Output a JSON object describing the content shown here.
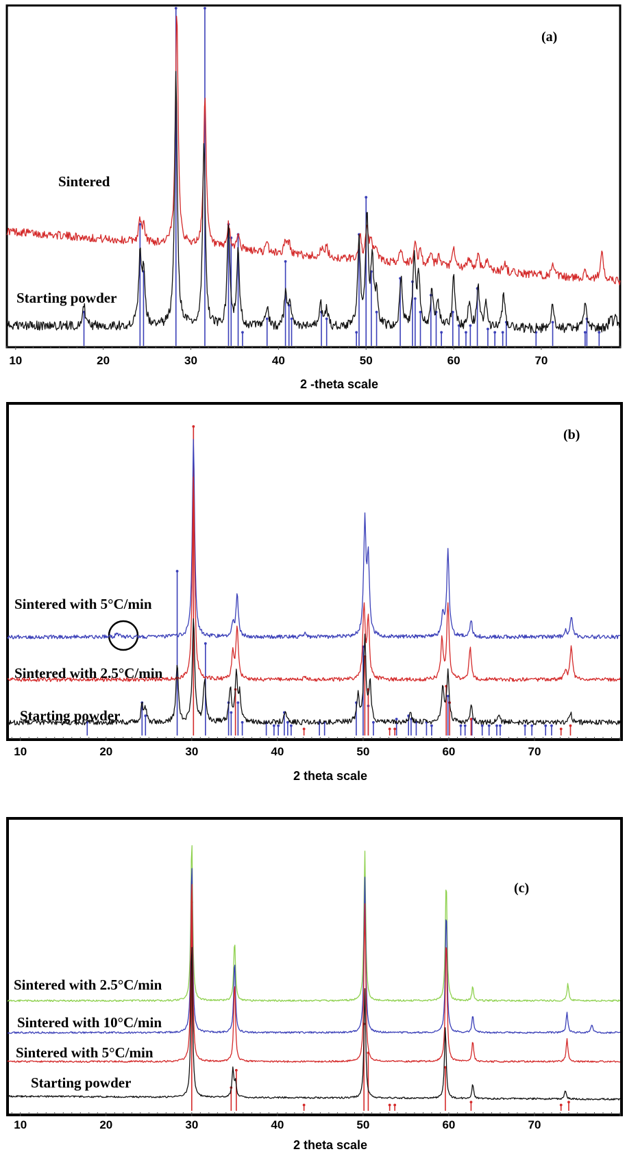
{
  "chart_data": [
    {
      "type": "line",
      "panel_label": "(a)",
      "xlabel": "2 -theta scale",
      "ylabel": "",
      "xlim": [
        9,
        79
      ],
      "x_ticks": [
        10,
        20,
        30,
        40,
        50,
        60,
        70
      ],
      "series": [
        {
          "name": "Sintered",
          "color": "#d42a2a",
          "baseline": 0.34,
          "baseline_end": 0.19,
          "noise": 0.012,
          "peaks": [
            [
              24.2,
              0.06
            ],
            [
              24.6,
              0.045
            ],
            [
              28.4,
              0.7
            ],
            [
              31.6,
              0.45
            ],
            [
              34.3,
              0.07
            ],
            [
              35.4,
              0.05
            ],
            [
              38.7,
              0.025
            ],
            [
              40.8,
              0.04
            ],
            [
              41.2,
              0.03
            ],
            [
              44.9,
              0.025
            ],
            [
              45.5,
              0.03
            ],
            [
              49.3,
              0.07
            ],
            [
              50.1,
              0.095
            ],
            [
              50.6,
              0.06
            ],
            [
              51.2,
              0.04
            ],
            [
              54.0,
              0.045
            ],
            [
              55.6,
              0.06
            ],
            [
              56.2,
              0.04
            ],
            [
              57.4,
              0.035
            ],
            [
              58.3,
              0.03
            ],
            [
              60.0,
              0.055
            ],
            [
              61.8,
              0.035
            ],
            [
              62.8,
              0.045
            ],
            [
              63.8,
              0.035
            ],
            [
              65.8,
              0.03
            ],
            [
              71.3,
              0.03
            ],
            [
              75.0,
              0.025
            ],
            [
              76.9,
              0.09
            ]
          ]
        },
        {
          "name": "Starting powder",
          "color": "#111111",
          "baseline": 0.06,
          "baseline_end": 0.05,
          "noise": 0.014,
          "peaks": [
            [
              17.8,
              0.06
            ],
            [
              24.2,
              0.2
            ],
            [
              24.6,
              0.16
            ],
            [
              28.3,
              0.75
            ],
            [
              31.5,
              0.55
            ],
            [
              34.3,
              0.3
            ],
            [
              35.4,
              0.22
            ],
            [
              38.7,
              0.06
            ],
            [
              40.8,
              0.09
            ],
            [
              41.3,
              0.08
            ],
            [
              44.8,
              0.07
            ],
            [
              45.5,
              0.06
            ],
            [
              49.2,
              0.25
            ],
            [
              50.1,
              0.32
            ],
            [
              50.7,
              0.19
            ],
            [
              51.2,
              0.1
            ],
            [
              54.0,
              0.14
            ],
            [
              55.5,
              0.2
            ],
            [
              56.0,
              0.15
            ],
            [
              57.5,
              0.1
            ],
            [
              58.2,
              0.08
            ],
            [
              60.0,
              0.15
            ],
            [
              61.8,
              0.08
            ],
            [
              62.8,
              0.12
            ],
            [
              63.7,
              0.07
            ],
            [
              65.7,
              0.1
            ],
            [
              71.3,
              0.07
            ],
            [
              75.0,
              0.08
            ],
            [
              77.9,
              0.04
            ],
            [
              78.5,
              0.04
            ]
          ]
        }
      ],
      "reference_lines": [
        {
          "name": "",
          "color": "#3a3fb8",
          "lines": [
            [
              17.8,
              0.1
            ],
            [
              24.2,
              0.36
            ],
            [
              24.6,
              0.22
            ],
            [
              28.3,
              1.0
            ],
            [
              31.6,
              1.0
            ],
            [
              34.3,
              0.36
            ],
            [
              34.6,
              0.32
            ],
            [
              35.4,
              0.33
            ],
            [
              35.9,
              0.04
            ],
            [
              38.7,
              0.08
            ],
            [
              40.8,
              0.25
            ],
            [
              41.2,
              0.12
            ],
            [
              41.5,
              0.08
            ],
            [
              44.9,
              0.1
            ],
            [
              45.5,
              0.08
            ],
            [
              48.9,
              0.04
            ],
            [
              49.2,
              0.33
            ],
            [
              50.0,
              0.44
            ],
            [
              50.6,
              0.22
            ],
            [
              51.2,
              0.1
            ],
            [
              53.9,
              0.2
            ],
            [
              55.3,
              0.19
            ],
            [
              55.6,
              0.14
            ],
            [
              56.2,
              0.1
            ],
            [
              57.4,
              0.15
            ],
            [
              58.0,
              0.1
            ],
            [
              58.6,
              0.04
            ],
            [
              59.9,
              0.1
            ],
            [
              60.6,
              0.06
            ],
            [
              61.4,
              0.04
            ],
            [
              61.9,
              0.06
            ],
            [
              62.7,
              0.17
            ],
            [
              63.9,
              0.05
            ],
            [
              64.7,
              0.04
            ],
            [
              65.6,
              0.04
            ],
            [
              66.0,
              0.07
            ],
            [
              69.4,
              0.04
            ],
            [
              71.3,
              0.07
            ],
            [
              75.0,
              0.04
            ],
            [
              75.2,
              0.08
            ],
            [
              76.6,
              0.04
            ]
          ]
        }
      ]
    },
    {
      "type": "line",
      "panel_label": "(b)",
      "xlabel": "2 theta scale",
      "ylabel": "",
      "xlim": [
        8.5,
        80
      ],
      "x_ticks": [
        10,
        20,
        30,
        40,
        50,
        60,
        70
      ],
      "series": [
        {
          "name": "Sintered with 5°C/min",
          "color": "#3a3fb8",
          "baseline": 0.3,
          "baseline_end": 0.3,
          "noise": 0.006,
          "peaks": [
            [
              21.3,
              0.015
            ],
            [
              30.2,
              0.6
            ],
            [
              34.8,
              0.04
            ],
            [
              35.3,
              0.13
            ],
            [
              43.2,
              0.01
            ],
            [
              50.2,
              0.34
            ],
            [
              50.6,
              0.23
            ],
            [
              59.3,
              0.07
            ],
            [
              59.9,
              0.27
            ],
            [
              62.6,
              0.05
            ],
            [
              73.6,
              0.02
            ],
            [
              74.3,
              0.06
            ]
          ]
        },
        {
          "name": "Sintered with 2.5°C/min",
          "color": "#d42a2a",
          "baseline": 0.17,
          "baseline_end": 0.17,
          "noise": 0.006,
          "peaks": [
            [
              30.2,
              0.62
            ],
            [
              34.8,
              0.08
            ],
            [
              35.3,
              0.16
            ],
            [
              43.2,
              0.01
            ],
            [
              50.1,
              0.22
            ],
            [
              50.6,
              0.18
            ],
            [
              59.2,
              0.12
            ],
            [
              59.9,
              0.23
            ],
            [
              62.5,
              0.1
            ],
            [
              73.6,
              0.03
            ],
            [
              74.3,
              0.1
            ]
          ]
        },
        {
          "name": "Starting powder",
          "color": "#111111",
          "baseline": 0.04,
          "baseline_end": 0.04,
          "noise": 0.008,
          "peaks": [
            [
              24.2,
              0.05
            ],
            [
              24.6,
              0.04
            ],
            [
              28.3,
              0.18
            ],
            [
              30.2,
              0.32
            ],
            [
              31.5,
              0.13
            ],
            [
              34.5,
              0.1
            ],
            [
              35.2,
              0.15
            ],
            [
              35.6,
              0.08
            ],
            [
              40.9,
              0.03
            ],
            [
              49.4,
              0.08
            ],
            [
              50.2,
              0.25
            ],
            [
              50.8,
              0.12
            ],
            [
              55.5,
              0.03
            ],
            [
              59.3,
              0.1
            ],
            [
              59.9,
              0.15
            ],
            [
              62.6,
              0.05
            ],
            [
              65.8,
              0.02
            ],
            [
              74.2,
              0.03
            ]
          ]
        }
      ],
      "reference_lines": [
        {
          "name": "",
          "color": "#3a3fb8",
          "lines": [
            [
              17.8,
              0.04
            ],
            [
              24.2,
              0.1
            ],
            [
              24.6,
              0.06
            ],
            [
              28.3,
              0.5
            ],
            [
              31.6,
              0.28
            ],
            [
              34.3,
              0.1
            ],
            [
              34.6,
              0.07
            ],
            [
              35.4,
              0.1
            ],
            [
              35.9,
              0.04
            ],
            [
              38.7,
              0.04
            ],
            [
              39.6,
              0.03
            ],
            [
              40.1,
              0.03
            ],
            [
              40.8,
              0.07
            ],
            [
              41.2,
              0.04
            ],
            [
              41.6,
              0.03
            ],
            [
              44.9,
              0.04
            ],
            [
              45.5,
              0.04
            ],
            [
              49.2,
              0.1
            ],
            [
              50.0,
              0.27
            ],
            [
              50.6,
              0.09
            ],
            [
              51.2,
              0.04
            ],
            [
              53.9,
              0.05
            ],
            [
              55.3,
              0.06
            ],
            [
              55.6,
              0.05
            ],
            [
              56.2,
              0.04
            ],
            [
              57.4,
              0.04
            ],
            [
              58.0,
              0.03
            ],
            [
              59.9,
              0.12
            ],
            [
              61.4,
              0.03
            ],
            [
              61.9,
              0.03
            ],
            [
              62.7,
              0.05
            ],
            [
              63.9,
              0.03
            ],
            [
              64.7,
              0.03
            ],
            [
              65.6,
              0.03
            ],
            [
              66.0,
              0.03
            ],
            [
              68.9,
              0.03
            ],
            [
              69.7,
              0.03
            ],
            [
              71.3,
              0.03
            ],
            [
              72.0,
              0.03
            ]
          ]
        },
        {
          "name": "",
          "color": "#d42a2a",
          "lines": [
            [
              30.2,
              0.94
            ],
            [
              35.1,
              0.14
            ],
            [
              43.1,
              0.02
            ],
            [
              50.2,
              0.24
            ],
            [
              50.6,
              0.14
            ],
            [
              53.1,
              0.02
            ],
            [
              53.7,
              0.02
            ],
            [
              59.7,
              0.15
            ],
            [
              60.1,
              0.1
            ],
            [
              62.6,
              0.05
            ],
            [
              73.1,
              0.02
            ],
            [
              74.2,
              0.03
            ]
          ]
        }
      ]
    },
    {
      "type": "line",
      "panel_label": "(c)",
      "xlabel": "2 theta scale",
      "ylabel": "",
      "xlim": [
        8.5,
        80
      ],
      "x_ticks": [
        10,
        20,
        30,
        40,
        50,
        60,
        70
      ],
      "series": [
        {
          "name": "Sintered with 2.5°C/min",
          "color": "#8fd14f",
          "baseline": 0.38,
          "baseline_end": 0.38,
          "noise": 0.003,
          "peaks": [
            [
              30.0,
              0.57
            ],
            [
              35.0,
              0.21
            ],
            [
              50.2,
              0.52
            ],
            [
              59.7,
              0.42
            ],
            [
              62.8,
              0.05
            ],
            [
              73.9,
              0.06
            ]
          ]
        },
        {
          "name": "Sintered with 10°C/min",
          "color": "#3a3fb8",
          "baseline": 0.27,
          "baseline_end": 0.27,
          "noise": 0.003,
          "peaks": [
            [
              30.0,
              0.6
            ],
            [
              35.0,
              0.25
            ],
            [
              50.2,
              0.54
            ],
            [
              59.7,
              0.43
            ],
            [
              62.8,
              0.06
            ],
            [
              73.8,
              0.07
            ],
            [
              76.7,
              0.03
            ]
          ]
        },
        {
          "name": "Sintered with 5°C/min",
          "color": "#d42a2a",
          "baseline": 0.17,
          "baseline_end": 0.17,
          "noise": 0.003,
          "peaks": [
            [
              30.0,
              0.65
            ],
            [
              35.0,
              0.28
            ],
            [
              50.2,
              0.55
            ],
            [
              59.7,
              0.43
            ],
            [
              62.8,
              0.07
            ],
            [
              73.8,
              0.08
            ]
          ]
        },
        {
          "name": "Starting powder",
          "color": "#111111",
          "baseline": 0.05,
          "baseline_end": 0.04,
          "noise": 0.003,
          "peaks": [
            [
              30.0,
              0.55
            ],
            [
              34.8,
              0.1
            ],
            [
              35.1,
              0.05
            ],
            [
              50.2,
              0.38
            ],
            [
              59.6,
              0.25
            ],
            [
              62.8,
              0.05
            ],
            [
              73.6,
              0.03
            ]
          ]
        }
      ],
      "reference_lines": [
        {
          "name": "",
          "color": "#d42a2a",
          "lines": [
            [
              30.0,
              0.72
            ],
            [
              34.6,
              0.08
            ],
            [
              35.2,
              0.14
            ],
            [
              43.1,
              0.02
            ],
            [
              50.1,
              0.3
            ],
            [
              50.6,
              0.2
            ],
            [
              53.1,
              0.02
            ],
            [
              53.7,
              0.02
            ],
            [
              59.6,
              0.15
            ],
            [
              62.6,
              0.03
            ],
            [
              73.1,
              0.02
            ],
            [
              74.0,
              0.03
            ]
          ]
        }
      ]
    }
  ]
}
